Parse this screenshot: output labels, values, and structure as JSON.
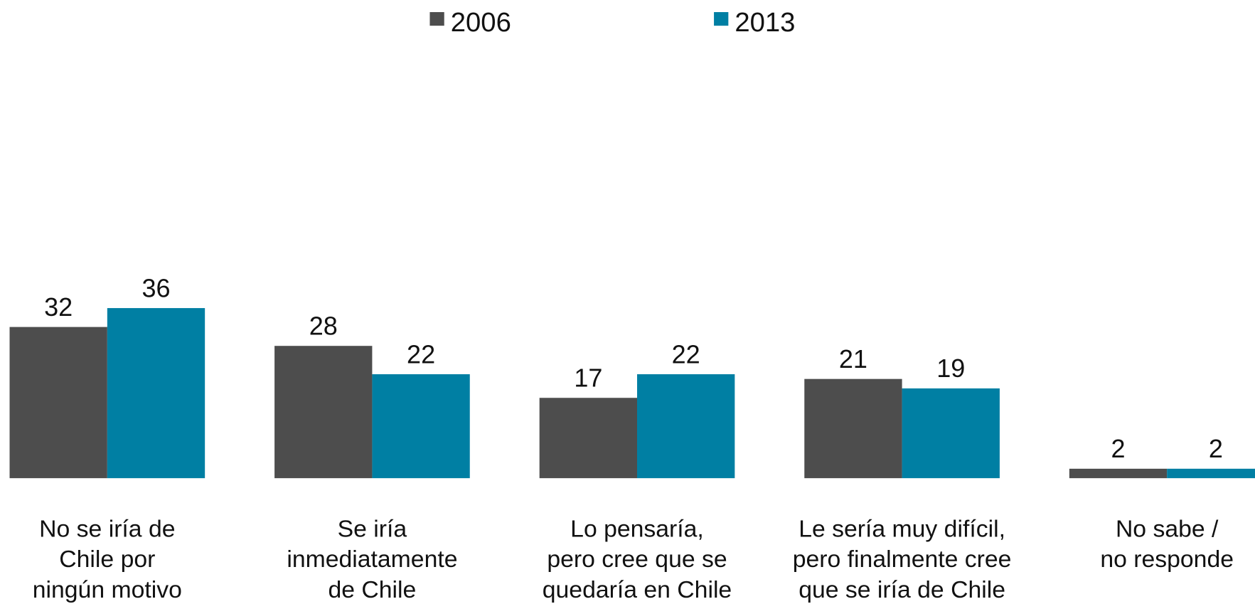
{
  "chart_data": {
    "type": "bar",
    "categories": [
      "No se iría de\nChile por\nningún motivo",
      "Se iría\ninmediatamente\nde Chile",
      "Lo pensaría,\npero cree que se\nquedaría en Chile",
      "Le sería muy difícil,\npero finalmente cree\nque se iría de Chile",
      "No sabe /\nno responde"
    ],
    "series": [
      {
        "name": "2006",
        "color": "#4d4d4d",
        "values": [
          32,
          28,
          17,
          21,
          2
        ]
      },
      {
        "name": "2013",
        "color": "#007fa3",
        "values": [
          36,
          22,
          22,
          19,
          2
        ]
      }
    ],
    "ylim": [
      0,
      40
    ],
    "legend": "top"
  }
}
